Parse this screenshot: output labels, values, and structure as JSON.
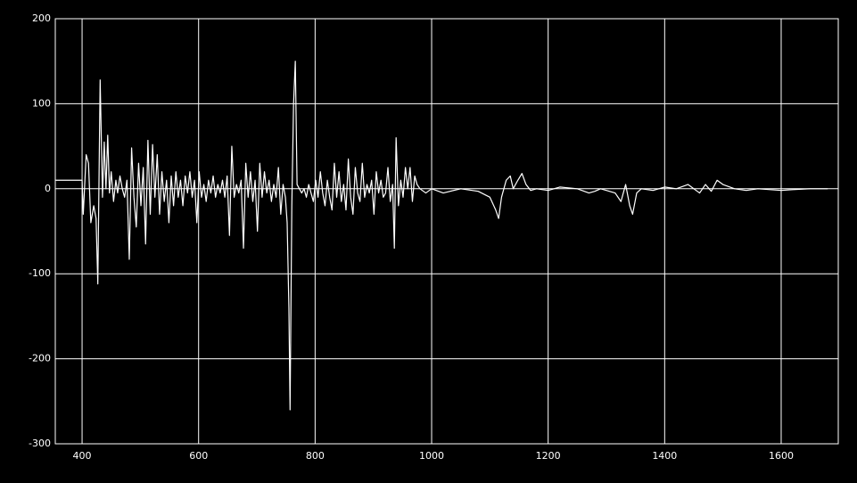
{
  "chart_data": {
    "type": "line",
    "color": "#ffffff",
    "grid": true,
    "xlim": [
      354,
      1698
    ],
    "ylim": [
      -300,
      200
    ],
    "xticks": [
      400,
      600,
      800,
      1000,
      1200,
      1400,
      1600
    ],
    "yticks": [
      -300,
      -200,
      -100,
      0,
      100,
      200
    ],
    "x": [
      354,
      400,
      402,
      407,
      411,
      415,
      420,
      424,
      427,
      431,
      435,
      438,
      441,
      444,
      447,
      450,
      454,
      458,
      461,
      465,
      469,
      473,
      477,
      481,
      485,
      489,
      493,
      497,
      501,
      505,
      509,
      513,
      517,
      521,
      525,
      529,
      533,
      537,
      541,
      545,
      549,
      553,
      557,
      561,
      565,
      569,
      573,
      577,
      581,
      585,
      589,
      593,
      597,
      601,
      605,
      609,
      613,
      617,
      621,
      625,
      629,
      633,
      637,
      641,
      645,
      649,
      653,
      657,
      661,
      665,
      669,
      673,
      677,
      681,
      685,
      689,
      693,
      697,
      701,
      705,
      709,
      713,
      717,
      721,
      725,
      729,
      733,
      737,
      741,
      745,
      749,
      752,
      755,
      757,
      760,
      763,
      766,
      769,
      773,
      777,
      781,
      785,
      789,
      793,
      797,
      801,
      805,
      809,
      813,
      817,
      821,
      825,
      829,
      833,
      837,
      841,
      845,
      849,
      853,
      857,
      861,
      865,
      869,
      873,
      877,
      881,
      885,
      889,
      893,
      897,
      901,
      905,
      909,
      913,
      917,
      921,
      925,
      929,
      933,
      936,
      939,
      943,
      947,
      951,
      955,
      959,
      963,
      967,
      971,
      975,
      980,
      990,
      1000,
      1020,
      1050,
      1080,
      1100,
      1110,
      1115,
      1120,
      1128,
      1135,
      1140,
      1148,
      1155,
      1162,
      1170,
      1180,
      1200,
      1220,
      1250,
      1270,
      1280,
      1290,
      1300,
      1315,
      1325,
      1333,
      1340,
      1345,
      1352,
      1360,
      1380,
      1400,
      1420,
      1440,
      1460,
      1470,
      1480,
      1490,
      1500,
      1520,
      1540,
      1560,
      1600,
      1620,
      1650,
      1680
    ],
    "values": [
      10,
      10,
      -30,
      40,
      30,
      -40,
      -20,
      -35,
      -112,
      128,
      -10,
      55,
      0,
      63,
      -5,
      20,
      -15,
      10,
      -5,
      15,
      0,
      -10,
      10,
      -83,
      48,
      -10,
      -45,
      30,
      -20,
      25,
      -65,
      57,
      -30,
      52,
      -10,
      40,
      -30,
      20,
      -15,
      10,
      -40,
      15,
      -20,
      20,
      -10,
      10,
      -20,
      15,
      -5,
      20,
      -10,
      10,
      -40,
      20,
      -10,
      5,
      -15,
      10,
      -5,
      15,
      -10,
      5,
      -5,
      10,
      -10,
      15,
      -55,
      50,
      -10,
      5,
      -5,
      10,
      -70,
      30,
      -10,
      20,
      -15,
      10,
      -50,
      30,
      -10,
      20,
      -5,
      10,
      -15,
      5,
      -10,
      25,
      -30,
      5,
      -10,
      -40,
      -140,
      -260,
      -20,
      100,
      150,
      5,
      0,
      -5,
      0,
      -10,
      5,
      -5,
      -15,
      10,
      -10,
      20,
      -5,
      -20,
      10,
      -10,
      -25,
      30,
      -10,
      20,
      -15,
      5,
      -25,
      35,
      -10,
      -30,
      25,
      -5,
      -15,
      30,
      -10,
      5,
      -5,
      10,
      -30,
      20,
      -5,
      10,
      -10,
      -5,
      25,
      -15,
      5,
      -70,
      60,
      -20,
      10,
      -10,
      25,
      0,
      25,
      -15,
      15,
      5,
      0,
      -5,
      0,
      -5,
      0,
      -3,
      -10,
      -25,
      -35,
      -10,
      10,
      15,
      0,
      10,
      18,
      5,
      -2,
      0,
      -2,
      2,
      0,
      -5,
      -3,
      0,
      -2,
      -5,
      -15,
      5,
      -20,
      -30,
      -5,
      0,
      -2,
      2,
      0,
      5,
      -5,
      5,
      -3,
      10,
      5,
      0,
      -2,
      0,
      -2,
      -1,
      0,
      0
    ]
  }
}
